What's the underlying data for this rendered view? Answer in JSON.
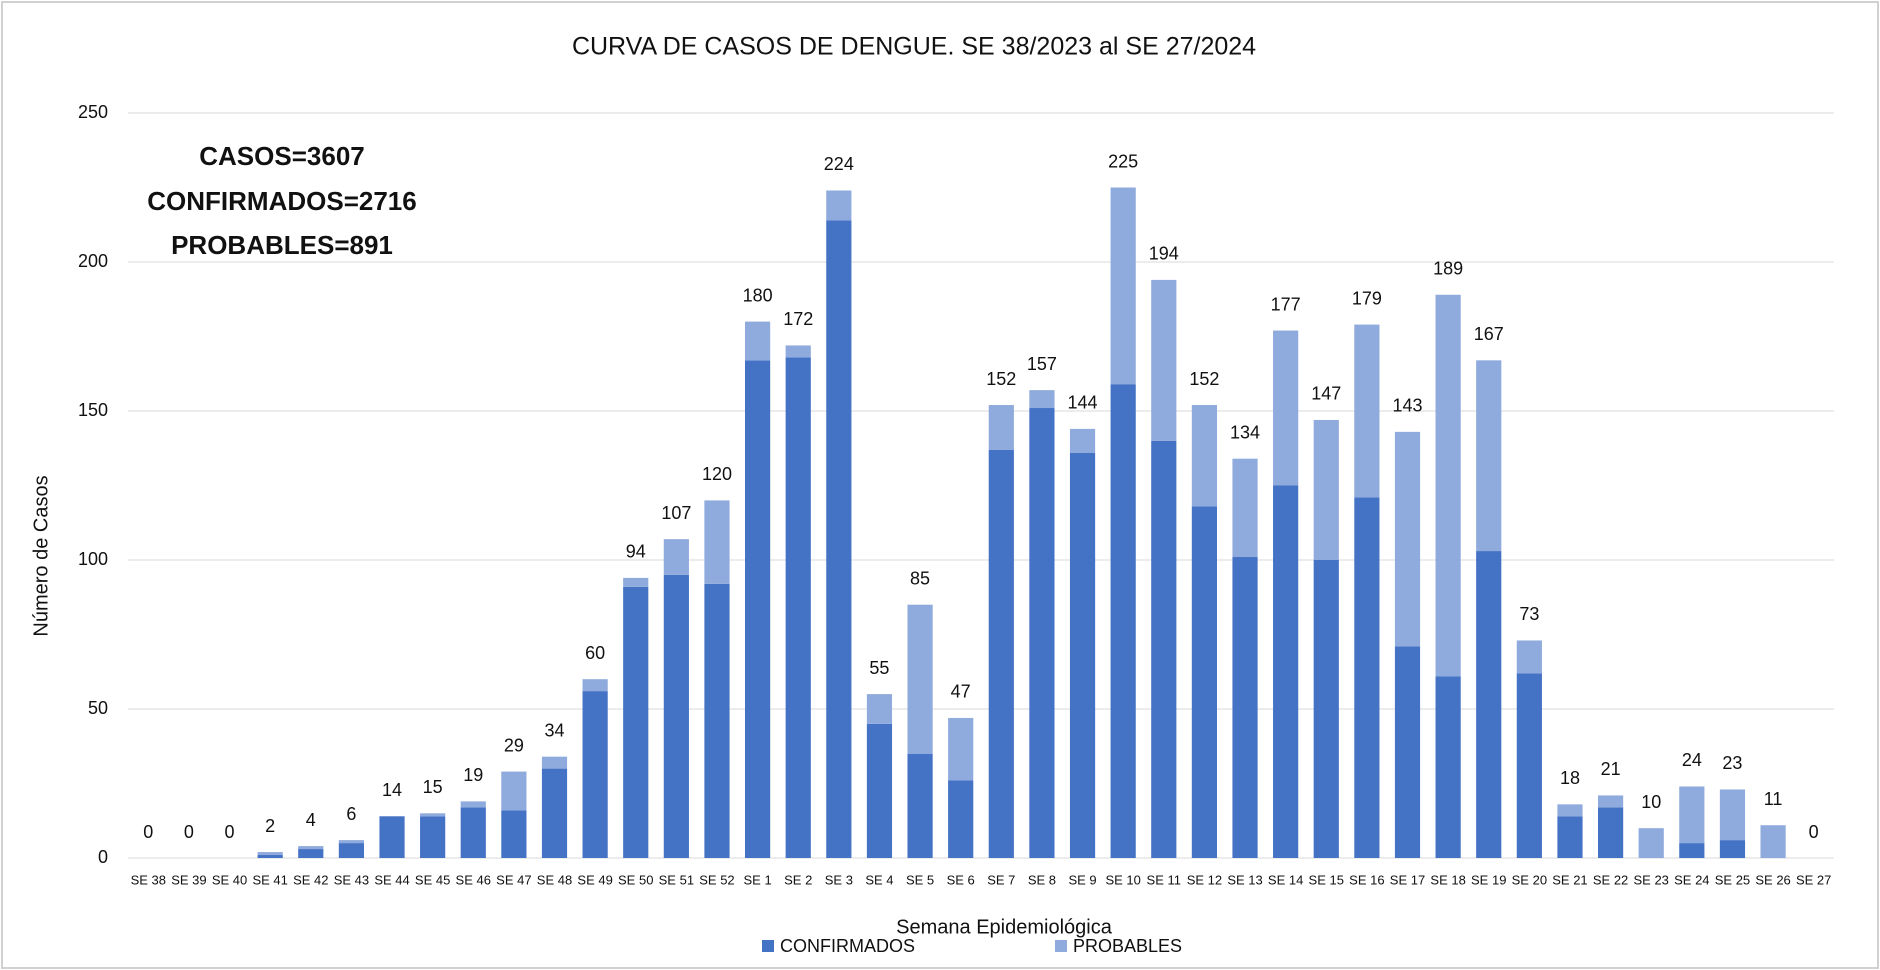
{
  "chart_data": {
    "type": "bar",
    "stacked": true,
    "title": "CURVA DE CASOS DE DENGUE. SE 38/2023 al SE 27/2024",
    "x_label": "Semana Epidemiológica",
    "y_label": "Número de Casos",
    "annotations": [
      "CASOS=3607",
      "CONFIRMADOS=2716",
      "PROBABLES=891"
    ],
    "categories": [
      "SE 38",
      "SE 39",
      "SE 40",
      "SE 41",
      "SE 42",
      "SE 43",
      "SE 44",
      "SE 45",
      "SE 46",
      "SE 47",
      "SE 48",
      "SE 49",
      "SE 50",
      "SE 51",
      "SE 52",
      "SE 1",
      "SE 2",
      "SE 3",
      "SE 4",
      "SE 5",
      "SE 6",
      "SE 7",
      "SE 8",
      "SE 9",
      "SE 10",
      "SE 11",
      "SE 12",
      "SE 13",
      "SE 14",
      "SE 15",
      "SE 16",
      "SE 17",
      "SE 18",
      "SE 19",
      "SE 20",
      "SE 21",
      "SE 22",
      "SE 23",
      "SE 24",
      "SE 25",
      "SE 26",
      "SE 27"
    ],
    "series": [
      {
        "name": "CONFIRMADOS",
        "color": "#4472c4",
        "values": [
          0,
          0,
          0,
          1,
          3,
          5,
          14,
          14,
          17,
          16,
          30,
          56,
          91,
          95,
          92,
          167,
          168,
          214,
          45,
          35,
          26,
          137,
          151,
          136,
          159,
          140,
          118,
          101,
          125,
          100,
          121,
          71,
          61,
          103,
          62,
          14,
          17,
          0,
          5,
          6,
          0,
          0
        ]
      },
      {
        "name": "PROBABLES",
        "color": "#8faadc",
        "values": [
          0,
          0,
          0,
          1,
          1,
          1,
          0,
          1,
          2,
          13,
          4,
          4,
          3,
          12,
          28,
          13,
          4,
          10,
          10,
          50,
          21,
          15,
          6,
          8,
          66,
          54,
          34,
          33,
          52,
          47,
          58,
          72,
          128,
          64,
          11,
          4,
          4,
          10,
          19,
          17,
          11,
          0
        ]
      }
    ],
    "totals": [
      0,
      0,
      0,
      2,
      4,
      6,
      14,
      15,
      19,
      29,
      34,
      60,
      94,
      107,
      120,
      180,
      172,
      224,
      55,
      85,
      47,
      152,
      157,
      144,
      225,
      194,
      152,
      134,
      177,
      147,
      179,
      143,
      189,
      167,
      73,
      18,
      21,
      10,
      24,
      23,
      11,
      0
    ],
    "ylim": [
      0,
      250
    ],
    "yticks": [
      0,
      50,
      100,
      150,
      200,
      250
    ],
    "grid": true,
    "legend": "bottom"
  }
}
